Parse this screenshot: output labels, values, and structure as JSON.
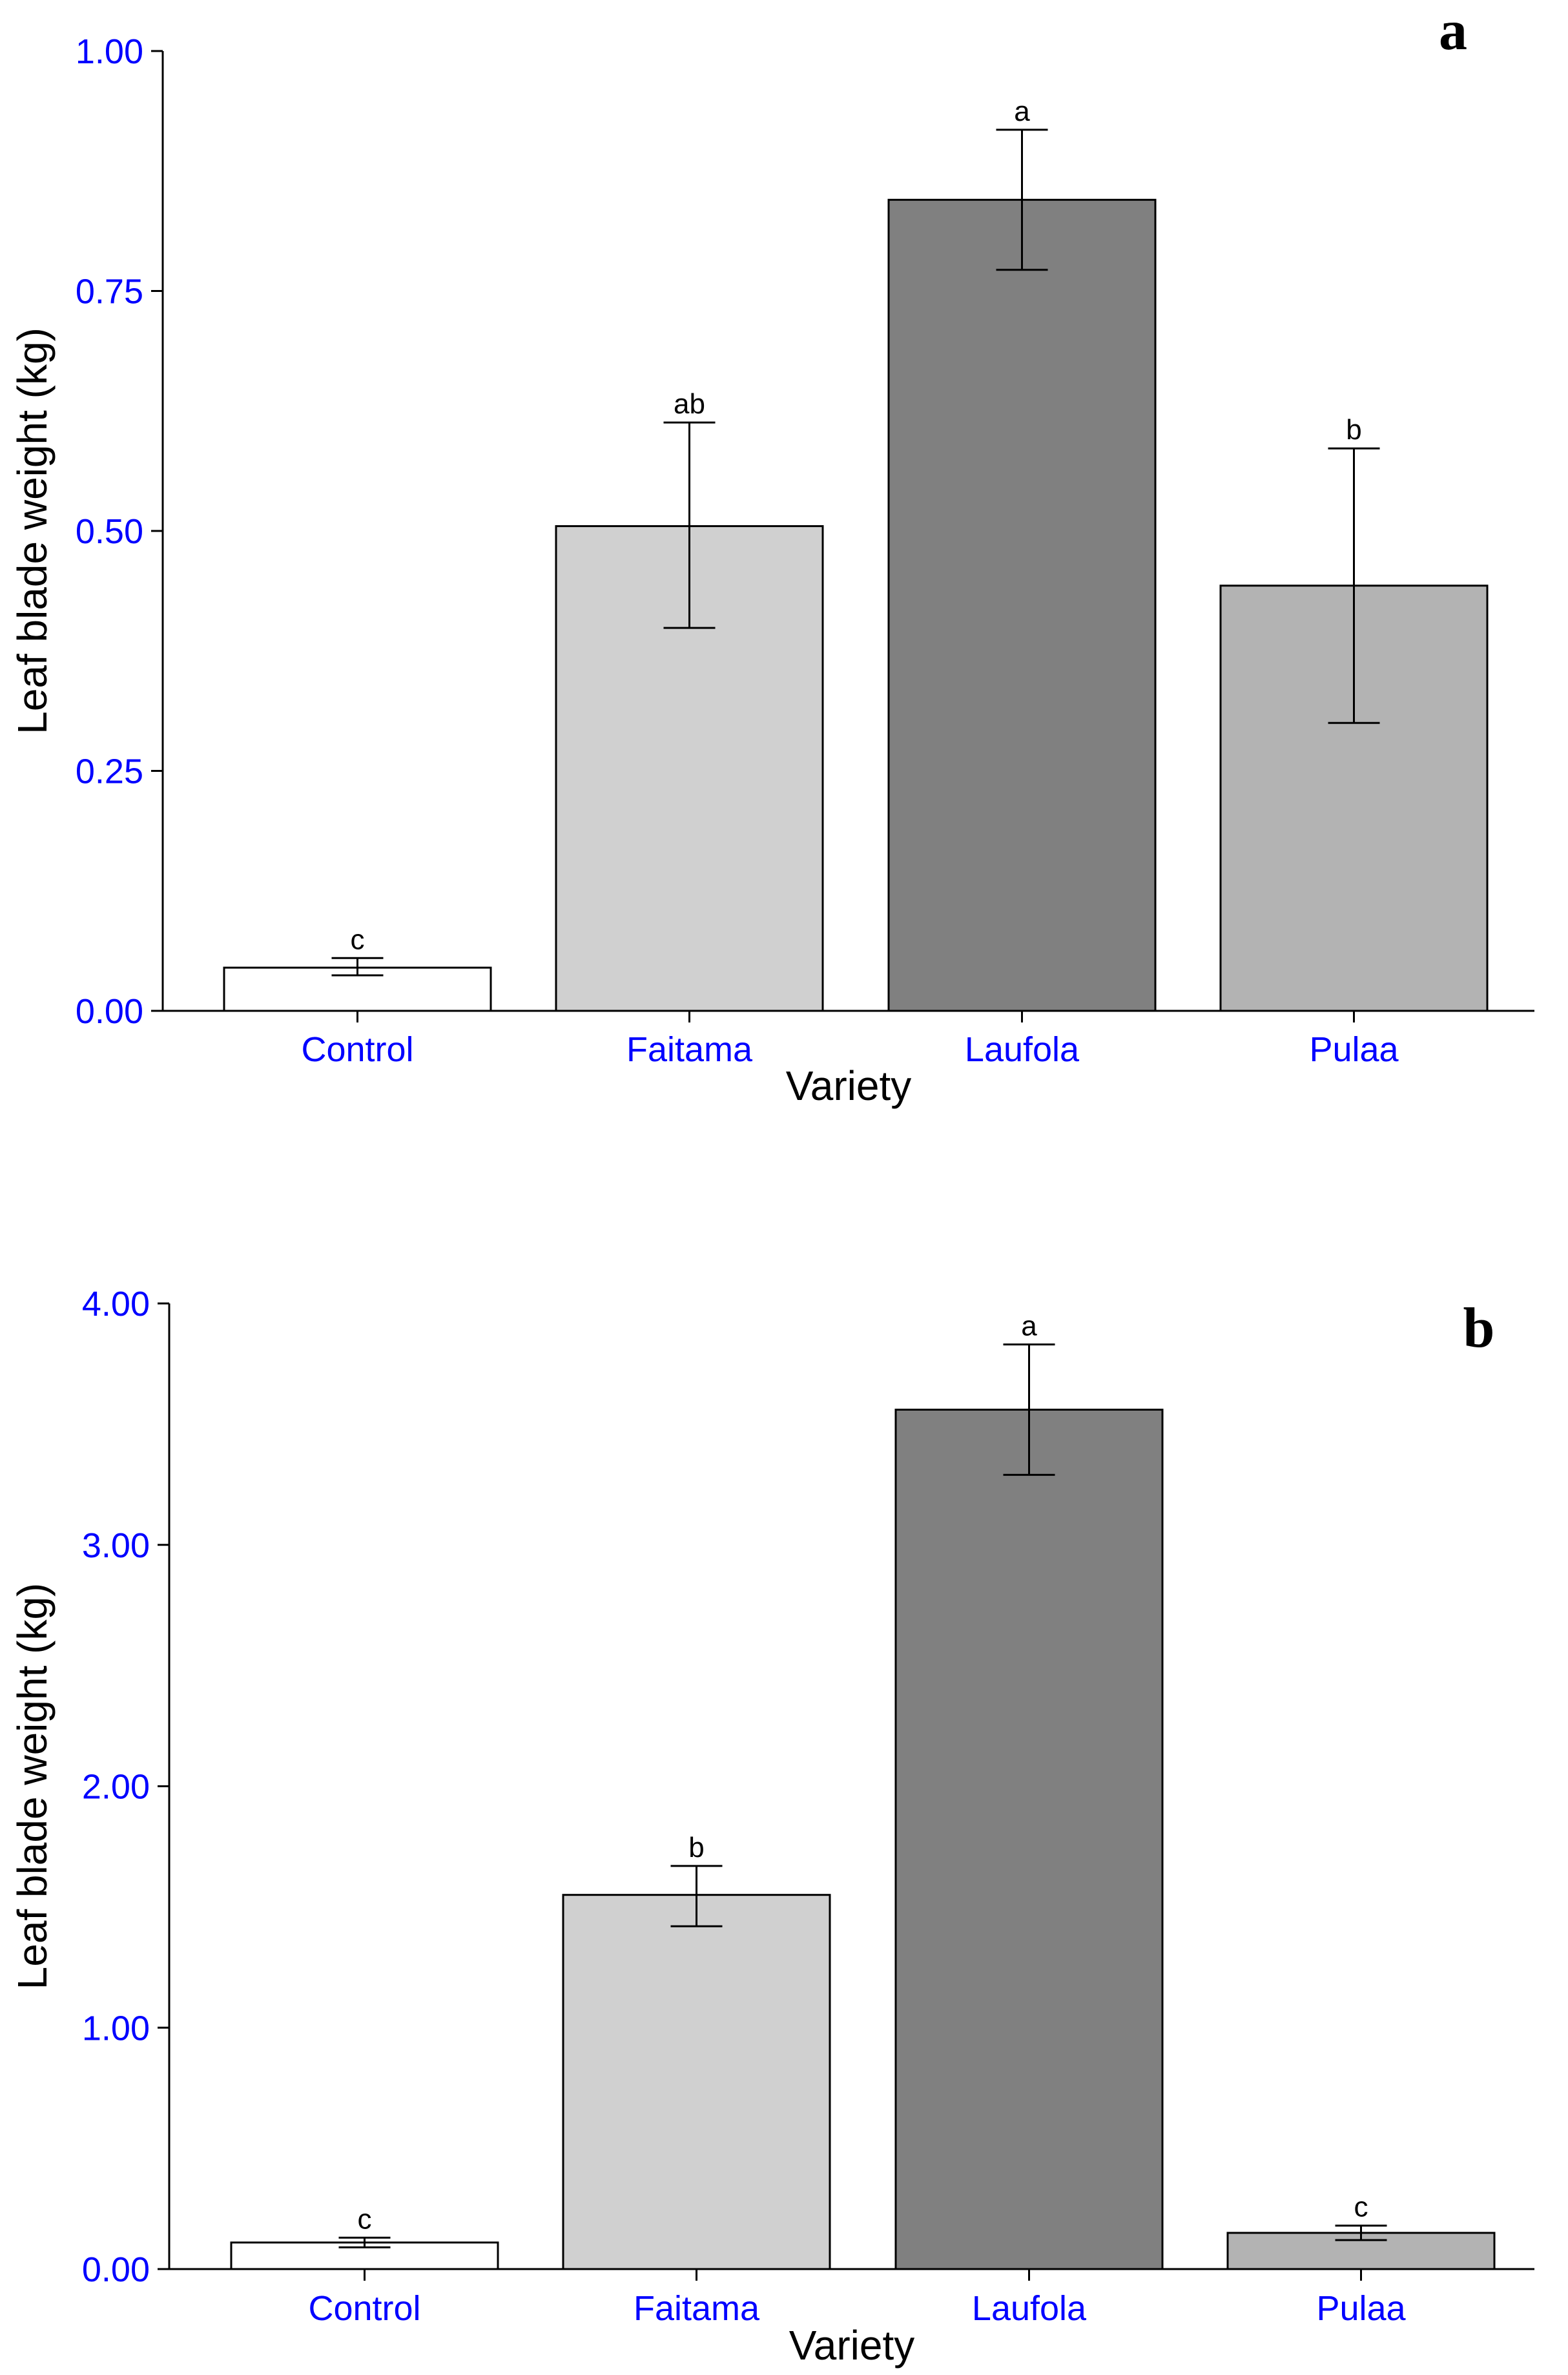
{
  "colors": {
    "tick_label": "#0000ff",
    "axis": "#000000",
    "bar_stroke": "#000000"
  },
  "chart_data": [
    {
      "type": "bar",
      "panel_label": "a",
      "xlabel": "Variety",
      "ylabel": "Leaf blade weight (kg)",
      "ylim": [
        0,
        1.0
      ],
      "yticks": [
        0,
        0.25,
        0.5,
        0.75,
        1.0
      ],
      "ytick_labels": [
        "0.00",
        "0.25",
        "0.50",
        "0.75",
        "1.00"
      ],
      "categories": [
        "Control",
        "Faitama",
        "Laufola",
        "Pulaa"
      ],
      "values": [
        0.045,
        0.505,
        0.845,
        0.443
      ],
      "error_low": [
        0.037,
        0.399,
        0.772,
        0.3
      ],
      "error_high": [
        0.055,
        0.613,
        0.918,
        0.586
      ],
      "significance": [
        "c",
        "ab",
        "a",
        "b"
      ],
      "bar_colors": [
        "#ffffff",
        "#d0d0d0",
        "#808080",
        "#b3b3b3"
      ]
    },
    {
      "type": "bar",
      "panel_label": "b",
      "xlabel": "Variety",
      "ylabel": "Leaf blade weight (kg)",
      "ylim": [
        0,
        4.0
      ],
      "yticks": [
        0,
        1.0,
        2.0,
        3.0,
        4.0
      ],
      "ytick_labels": [
        "0.00",
        "1.00",
        "2.00",
        "3.00",
        "4.00"
      ],
      "categories": [
        "Control",
        "Faitama",
        "Laufola",
        "Pulaa"
      ],
      "values": [
        0.11,
        1.55,
        3.56,
        0.15
      ],
      "error_low": [
        0.09,
        1.42,
        3.29,
        0.12
      ],
      "error_high": [
        0.13,
        1.67,
        3.83,
        0.18
      ],
      "significance": [
        "c",
        "b",
        "a",
        "c"
      ],
      "bar_colors": [
        "#ffffff",
        "#d0d0d0",
        "#808080",
        "#b3b3b3"
      ]
    }
  ]
}
